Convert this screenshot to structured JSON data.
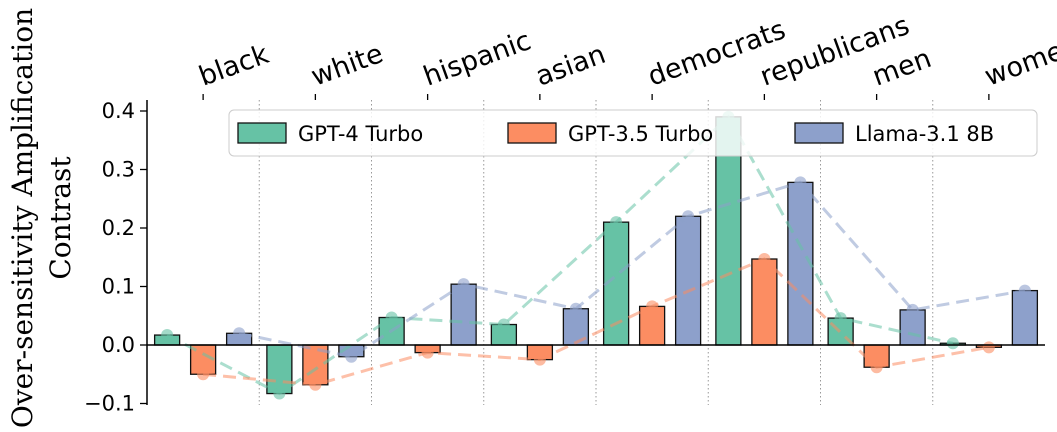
{
  "chart_data": {
    "type": "bar",
    "title": "",
    "xlabel": "",
    "ylabel_lines": [
      "Over-sensitivity Amplification",
      "Contrast"
    ],
    "categories": [
      "black",
      "white",
      "hispanic",
      "asian",
      "democrats",
      "republicans",
      "men",
      "women"
    ],
    "ylim": [
      -0.1,
      0.4
    ],
    "yticks": [
      -0.1,
      0.0,
      0.1,
      0.2,
      0.3,
      0.4
    ],
    "ytick_labels": [
      "−0.1",
      "0.0",
      "0.1",
      "0.2",
      "0.3",
      "0.4"
    ],
    "legend_position": "top-right",
    "series": [
      {
        "name": "GPT-4 Turbo",
        "color": "#66c2a5",
        "values": [
          0.017,
          -0.083,
          0.047,
          0.035,
          0.21,
          0.39,
          0.046,
          0.003
        ]
      },
      {
        "name": "GPT-3.5 Turbo",
        "color": "#fc8d62",
        "values": [
          -0.05,
          -0.068,
          -0.013,
          -0.025,
          0.066,
          0.147,
          -0.038,
          -0.004
        ]
      },
      {
        "name": "Llama-3.1 8B",
        "color": "#8da0cb",
        "values": [
          0.02,
          -0.02,
          0.104,
          0.062,
          0.22,
          0.278,
          0.06,
          0.093
        ]
      }
    ]
  }
}
